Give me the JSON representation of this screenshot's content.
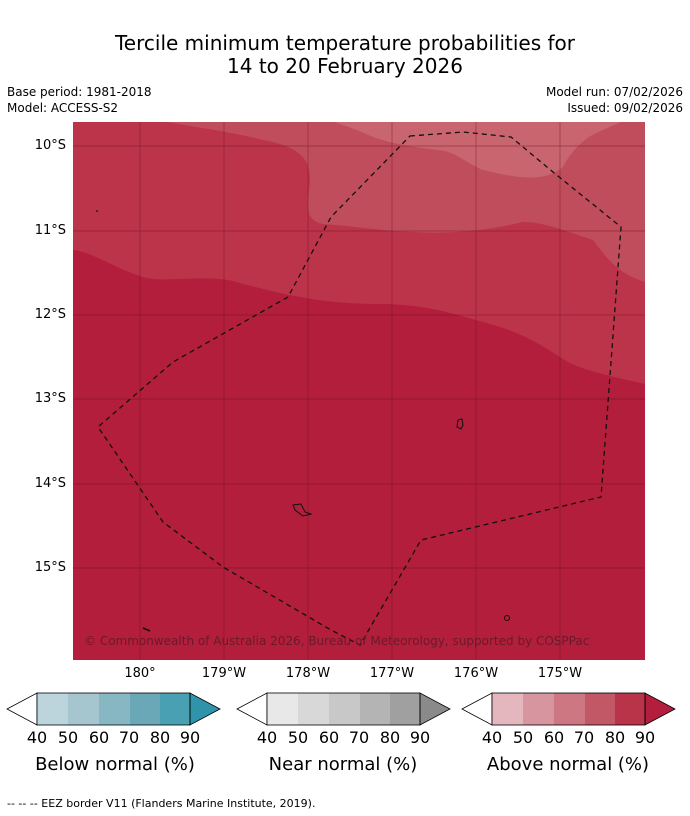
{
  "title_line1": "Tercile minimum temperature probabilities for",
  "title_line2": "14 to 20 February 2026",
  "base_period": "Base period: 1981-2018",
  "model": "Model: ACCESS-S2",
  "model_run": "Model run: 07/02/2026",
  "issued": "Issued: 09/02/2026",
  "lat_labels": [
    "10°S",
    "11°S",
    "12°S",
    "13°S",
    "14°S",
    "15°S"
  ],
  "lon_labels": [
    "180°",
    "179°W",
    "178°W",
    "177°W",
    "176°W",
    "175°W"
  ],
  "copyright": "© Commonwealth of Australia 2026, Bureau of Meteorology, supported by COSPPac",
  "colorbars": [
    {
      "label": "Below normal (%)",
      "ticks": [
        "40",
        "50",
        "60",
        "70",
        "80",
        "90"
      ],
      "colors": [
        "#bcd4dc",
        "#a5c6cf",
        "#88b7c4",
        "#6aa8b7",
        "#48a0b2",
        "#2f93aa"
      ]
    },
    {
      "label": "Near normal (%)",
      "ticks": [
        "40",
        "50",
        "60",
        "70",
        "80",
        "90"
      ],
      "colors": [
        "#e8e8e8",
        "#d8d8d8",
        "#c8c8c8",
        "#b4b4b4",
        "#a0a0a0",
        "#8a8a8a"
      ]
    },
    {
      "label": "Above normal (%)",
      "ticks": [
        "40",
        "50",
        "60",
        "70",
        "80",
        "90"
      ],
      "colors": [
        "#e3b7bd",
        "#d7959f",
        "#cd7783",
        "#c25866",
        "#b93349",
        "#b21e3b"
      ]
    }
  ],
  "footnote": "--  --  -- EEZ border V11 (Flanders Marine Institute, 2019).",
  "map_colors": {
    "band70": "#c8656f",
    "band60": "#c04d5b",
    "band50": "#bc3449",
    "band40": "#b21e3b"
  }
}
